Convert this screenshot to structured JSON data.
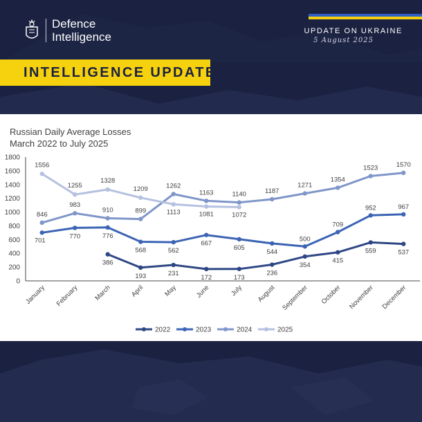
{
  "header": {
    "org_line1": "Defence",
    "org_line2": "Intelligence",
    "update_title": "UPDATE ON UKRAINE",
    "update_date": "5 August 2025",
    "banner": "INTELLIGENCE UPDATE"
  },
  "colors": {
    "background": "#1b2140",
    "banner": "#f5d10e",
    "flag_blue": "#2f5ec4",
    "flag_yellow": "#f5d010"
  },
  "chart_data": {
    "type": "line",
    "title_line1": "Russian Daily Average Losses",
    "title_line2": "March 2022 to July 2025",
    "categories": [
      "January",
      "February",
      "March",
      "April",
      "May",
      "June",
      "July",
      "August",
      "September",
      "October",
      "November",
      "December"
    ],
    "ylim": [
      0,
      1800
    ],
    "yticks": [
      0,
      200,
      400,
      600,
      800,
      1000,
      1200,
      1400,
      1600,
      1800
    ],
    "grid": false,
    "legend_position": "bottom",
    "series": [
      {
        "name": "2022",
        "color": "#2e4784",
        "values": [
          null,
          null,
          386,
          193,
          231,
          172,
          173,
          236,
          354,
          415,
          559,
          537
        ],
        "label_pos": "below"
      },
      {
        "name": "2023",
        "color": "#3b64b4",
        "values": [
          701,
          770,
          776,
          568,
          562,
          667,
          605,
          544,
          500,
          709,
          952,
          967
        ],
        "label_pos": "below23"
      },
      {
        "name": "2024",
        "color": "#7f96c9",
        "values": [
          846,
          983,
          910,
          899,
          1262,
          1163,
          1140,
          1187,
          1271,
          1354,
          1523,
          1570
        ],
        "label_pos": "above"
      },
      {
        "name": "2025",
        "color": "#b5c1e0",
        "values": [
          1556,
          1255,
          1328,
          1209,
          1113,
          1081,
          1072,
          null,
          null,
          null,
          null,
          null
        ],
        "label_pos": "mixed"
      }
    ]
  }
}
